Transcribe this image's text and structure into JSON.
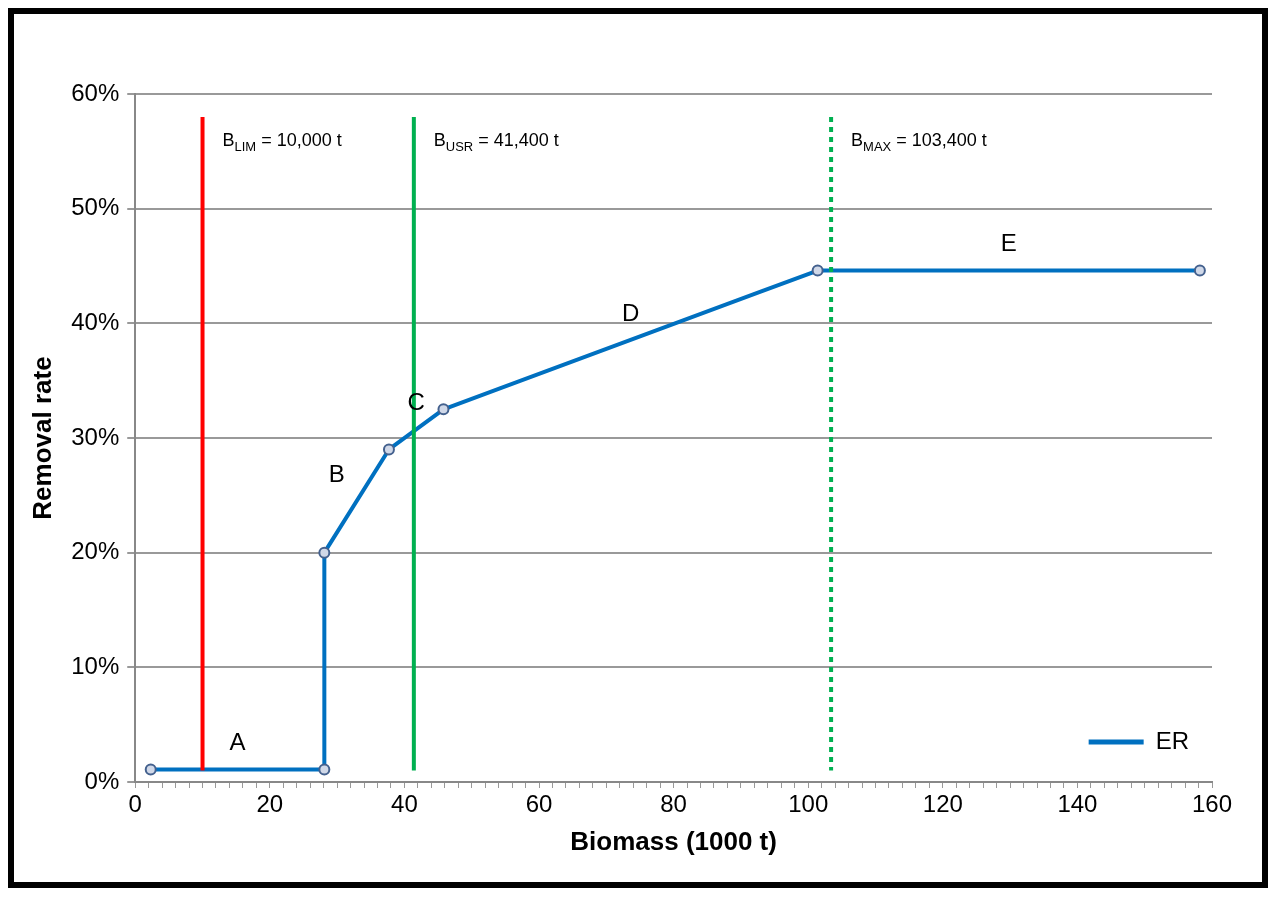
{
  "chart_data": {
    "type": "line",
    "xlabel": "Biomass (1000 t)",
    "ylabel": "Removal rate",
    "xlim": [
      0,
      160
    ],
    "xticks": [
      {
        "value": 0,
        "label": "0"
      },
      {
        "value": 2,
        "label": null
      },
      {
        "value": 4,
        "label": null
      },
      {
        "value": 6,
        "label": null
      },
      {
        "value": 8,
        "label": null
      },
      {
        "value": 10,
        "label": null
      },
      {
        "value": 12,
        "label": null
      },
      {
        "value": 14,
        "label": null
      },
      {
        "value": 16,
        "label": null
      },
      {
        "value": 18,
        "label": null
      },
      {
        "value": 20,
        "label": "20"
      },
      {
        "value": 22,
        "label": null
      },
      {
        "value": 24,
        "label": null
      },
      {
        "value": 26,
        "label": null
      },
      {
        "value": 28,
        "label": null
      },
      {
        "value": 30,
        "label": null
      },
      {
        "value": 32,
        "label": null
      },
      {
        "value": 34,
        "label": null
      },
      {
        "value": 36,
        "label": null
      },
      {
        "value": 38,
        "label": null
      },
      {
        "value": 40,
        "label": "40"
      },
      {
        "value": 42,
        "label": null
      },
      {
        "value": 44,
        "label": null
      },
      {
        "value": 46,
        "label": null
      },
      {
        "value": 48,
        "label": null
      },
      {
        "value": 50,
        "label": null
      },
      {
        "value": 52,
        "label": null
      },
      {
        "value": 54,
        "label": null
      },
      {
        "value": 56,
        "label": null
      },
      {
        "value": 58,
        "label": null
      },
      {
        "value": 60,
        "label": "60"
      },
      {
        "value": 62,
        "label": null
      },
      {
        "value": 64,
        "label": null
      },
      {
        "value": 66,
        "label": null
      },
      {
        "value": 68,
        "label": null
      },
      {
        "value": 70,
        "label": null
      },
      {
        "value": 72,
        "label": null
      },
      {
        "value": 74,
        "label": null
      },
      {
        "value": 76,
        "label": null
      },
      {
        "value": 78,
        "label": null
      },
      {
        "value": 80,
        "label": "80"
      },
      {
        "value": 82,
        "label": null
      },
      {
        "value": 84,
        "label": null
      },
      {
        "value": 86,
        "label": null
      },
      {
        "value": 88,
        "label": null
      },
      {
        "value": 90,
        "label": null
      },
      {
        "value": 92,
        "label": null
      },
      {
        "value": 94,
        "label": null
      },
      {
        "value": 96,
        "label": null
      },
      {
        "value": 98,
        "label": null
      },
      {
        "value": 100,
        "label": "100"
      },
      {
        "value": 102,
        "label": null
      },
      {
        "value": 104,
        "label": null
      },
      {
        "value": 106,
        "label": null
      },
      {
        "value": 108,
        "label": null
      },
      {
        "value": 110,
        "label": null
      },
      {
        "value": 112,
        "label": null
      },
      {
        "value": 114,
        "label": null
      },
      {
        "value": 116,
        "label": null
      },
      {
        "value": 118,
        "label": null
      },
      {
        "value": 120,
        "label": "120"
      },
      {
        "value": 122,
        "label": null
      },
      {
        "value": 124,
        "label": null
      },
      {
        "value": 126,
        "label": null
      },
      {
        "value": 128,
        "label": null
      },
      {
        "value": 130,
        "label": null
      },
      {
        "value": 132,
        "label": null
      },
      {
        "value": 134,
        "label": null
      },
      {
        "value": 136,
        "label": null
      },
      {
        "value": 138,
        "label": null
      },
      {
        "value": 140,
        "label": "140"
      },
      {
        "value": 142,
        "label": null
      },
      {
        "value": 144,
        "label": null
      },
      {
        "value": 146,
        "label": null
      },
      {
        "value": 148,
        "label": null
      },
      {
        "value": 150,
        "label": null
      },
      {
        "value": 152,
        "label": null
      },
      {
        "value": 154,
        "label": null
      },
      {
        "value": 156,
        "label": null
      },
      {
        "value": 158,
        "label": null
      },
      {
        "value": 160,
        "label": "160"
      }
    ],
    "ylim": [
      0,
      60
    ],
    "yticks": [
      {
        "value": 0,
        "label": "0%"
      },
      {
        "value": 10,
        "label": "10%"
      },
      {
        "value": 20,
        "label": "20%"
      },
      {
        "value": 30,
        "label": "30%"
      },
      {
        "value": 40,
        "label": "40%"
      },
      {
        "value": 50,
        "label": "50%"
      },
      {
        "value": 60,
        "label": "60%"
      }
    ],
    "x": [
      2.3,
      28.1,
      28.1,
      37.7,
      45.8,
      101.4,
      158.2
    ],
    "series": [
      {
        "name": "ER",
        "color": "#0070c0",
        "values": [
          1.1,
          1.1,
          20,
          29,
          32.5,
          44.6,
          44.6
        ]
      }
    ],
    "ref_lines": [
      {
        "axis": "x",
        "value": 10,
        "label": "B$_{LIM}$ = 10,000 t",
        "color": "#ff0000",
        "line_style": "solid"
      },
      {
        "axis": "x",
        "value": 41.4,
        "label": "B$_{USR}$ = 41,400 t",
        "color": "#00b050",
        "line_style": "solid"
      },
      {
        "axis": "x",
        "value": 103.4,
        "label": "B$_{MAX}$ = 103,400 t",
        "color": "#00b050",
        "line_style": "dotted"
      }
    ],
    "annotations": [
      "A",
      "B",
      "C",
      "D",
      "E"
    ],
    "grid": "y",
    "legend": "bottom right",
    "marker": "circle",
    "line_style": "solid"
  }
}
